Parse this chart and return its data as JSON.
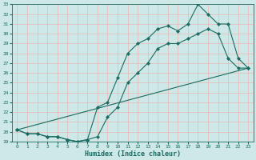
{
  "title": "",
  "xlabel": "Humidex (Indice chaleur)",
  "ylabel": "",
  "bg_color": "#cde8e6",
  "grid_color": "#b8d8d5",
  "line_color": "#1a6b62",
  "xlim": [
    -0.5,
    23.5
  ],
  "ylim": [
    19,
    33
  ],
  "yticks": [
    19,
    20,
    21,
    22,
    23,
    24,
    25,
    26,
    27,
    28,
    29,
    30,
    31,
    32,
    33
  ],
  "xticks": [
    0,
    1,
    2,
    3,
    4,
    5,
    6,
    7,
    8,
    9,
    10,
    11,
    12,
    13,
    14,
    15,
    16,
    17,
    18,
    19,
    20,
    21,
    22,
    23
  ],
  "line1_x": [
    0,
    1,
    2,
    3,
    4,
    5,
    6,
    7,
    8,
    9,
    10,
    11,
    12,
    13,
    14,
    15,
    16,
    17,
    18,
    19,
    20,
    21,
    22,
    23
  ],
  "line1_y": [
    20.2,
    19.8,
    19.8,
    19.5,
    19.5,
    19.2,
    19.0,
    19.2,
    19.5,
    21.5,
    22.5,
    25.0,
    26.0,
    27.0,
    28.5,
    29.0,
    29.0,
    29.5,
    30.0,
    30.5,
    30.0,
    27.5,
    26.5,
    26.5
  ],
  "line2_x": [
    0,
    1,
    2,
    3,
    4,
    5,
    6,
    7,
    8,
    9,
    10,
    11,
    12,
    13,
    14,
    15,
    16,
    17,
    18,
    19,
    20,
    21,
    22,
    23
  ],
  "line2_y": [
    20.2,
    19.8,
    19.8,
    19.5,
    19.5,
    19.2,
    19.0,
    19.2,
    22.5,
    23.0,
    25.5,
    28.0,
    29.0,
    29.5,
    30.5,
    30.8,
    30.3,
    31.0,
    33.0,
    32.0,
    31.0,
    31.0,
    27.5,
    26.5
  ],
  "line3_x": [
    0,
    23
  ],
  "line3_y": [
    20.2,
    26.5
  ]
}
